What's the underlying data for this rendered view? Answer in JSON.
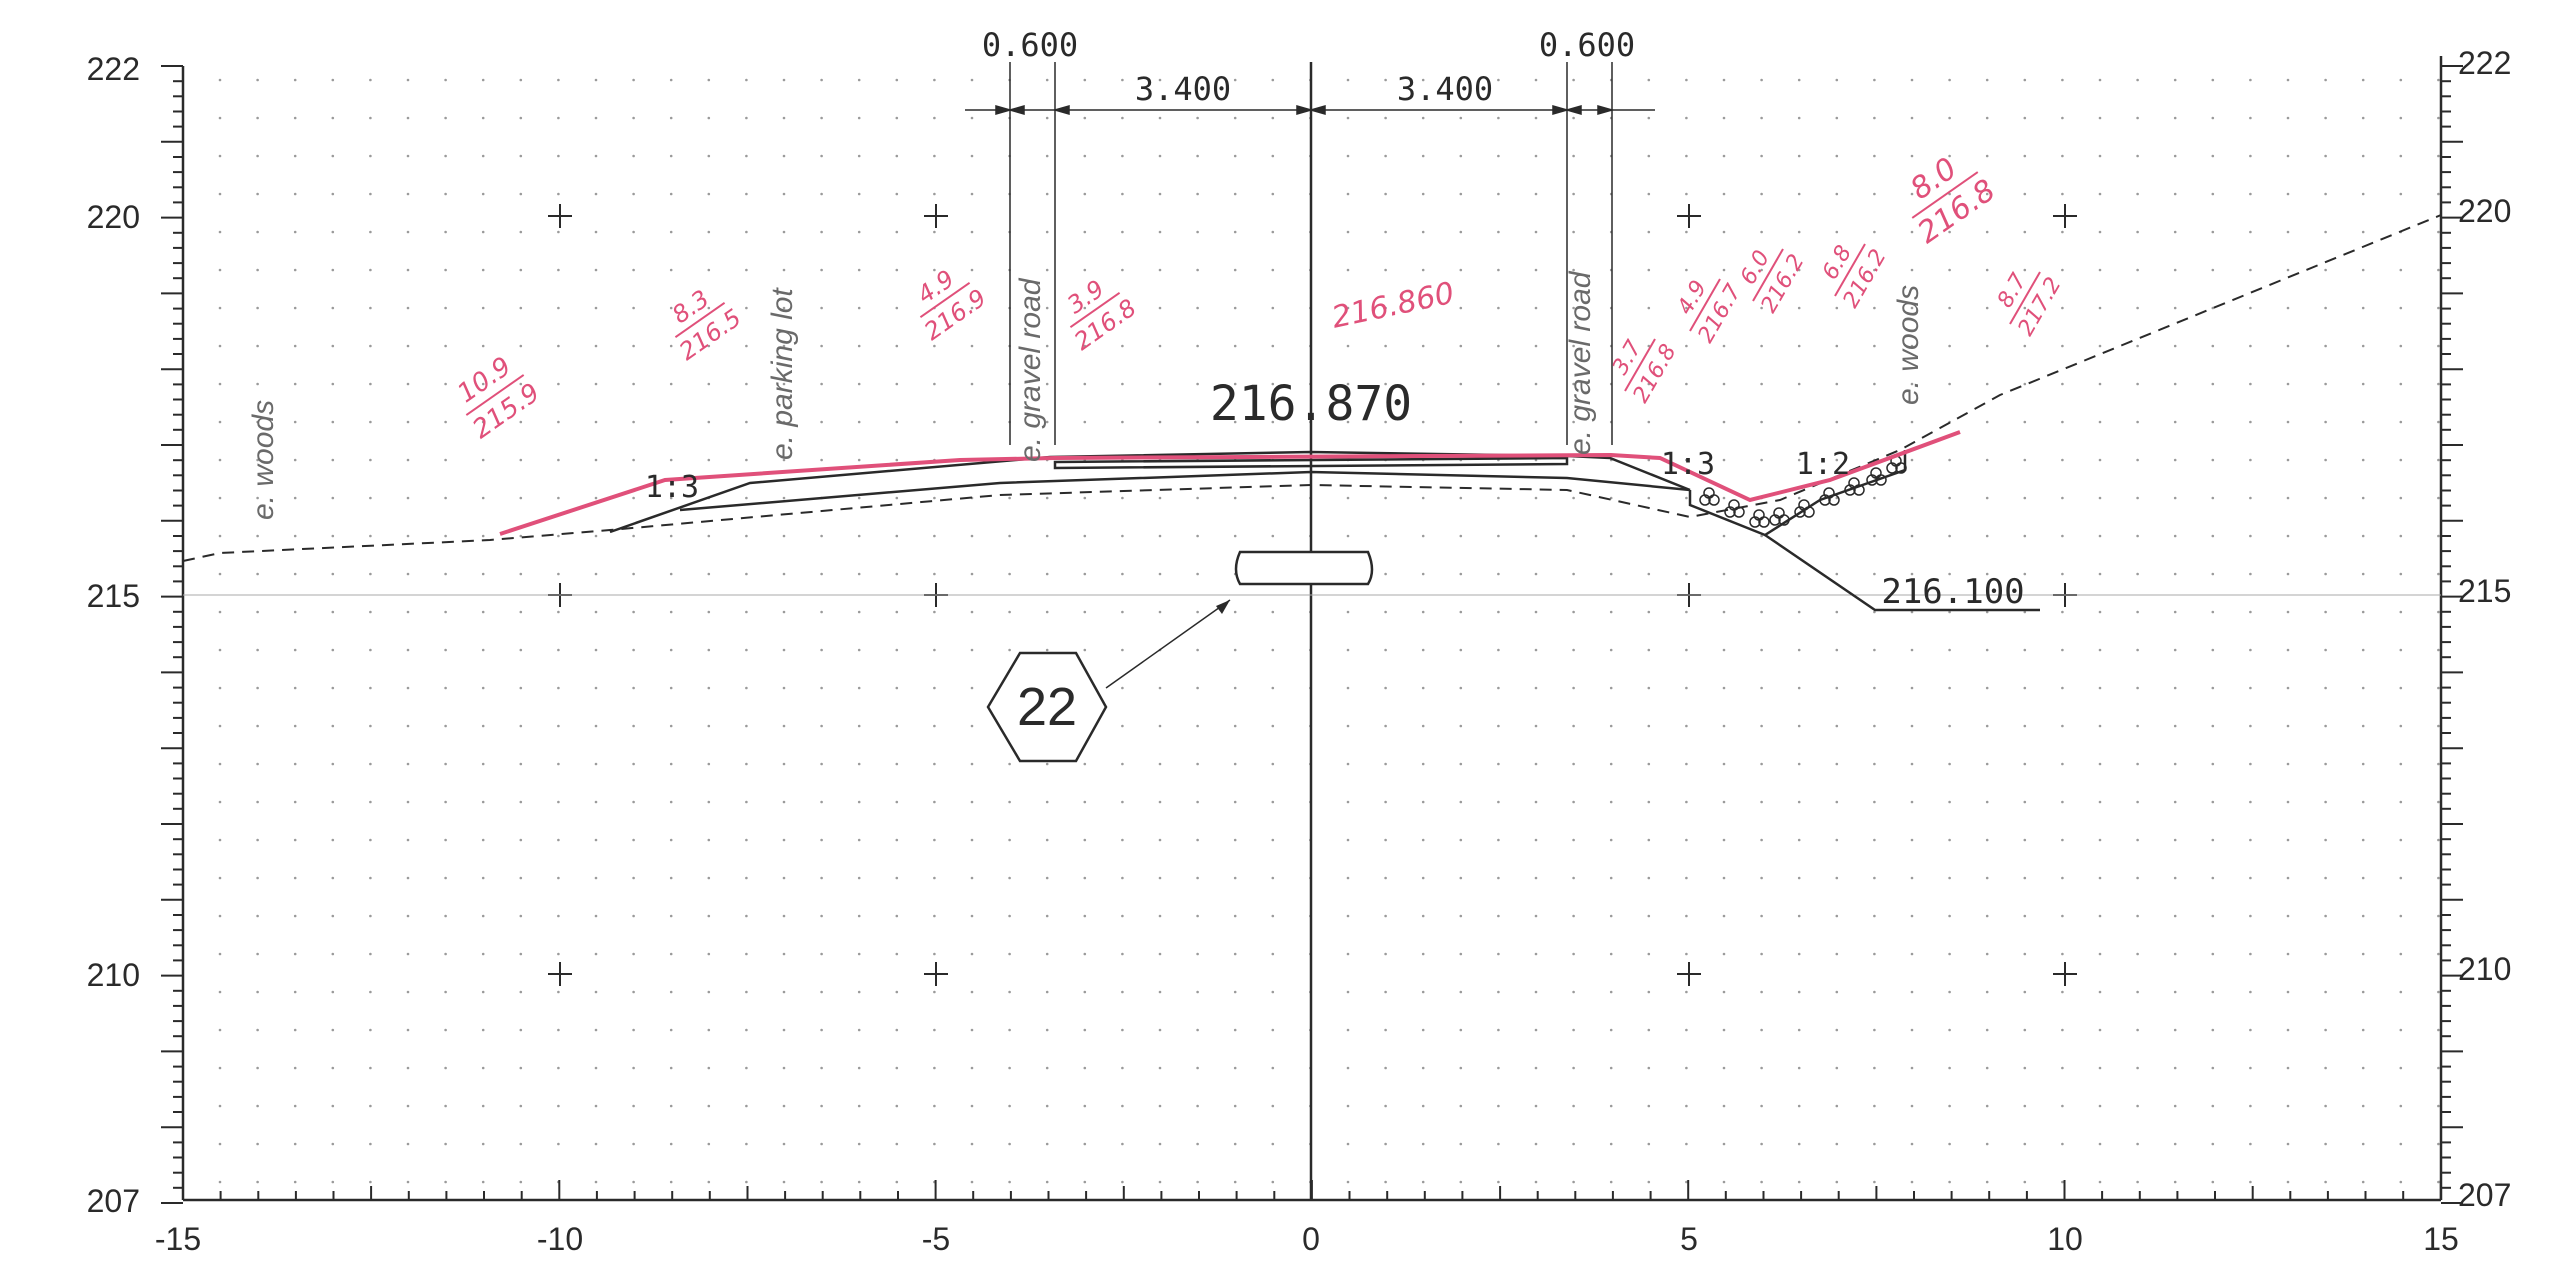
{
  "axes": {
    "x_ticks": [
      "-15",
      "-10",
      "-5",
      "0",
      "5",
      "10",
      "15"
    ],
    "y_ticks_left": [
      "222",
      "220",
      "215",
      "210",
      "207"
    ],
    "y_ticks_right": [
      "222",
      "220",
      "215",
      "210",
      "207"
    ]
  },
  "dims": {
    "left_outer": "0.600",
    "right_outer": "0.600",
    "left_inner": "3.400",
    "right_inner": "3.400",
    "centre_elev": "216.870",
    "ditch_elev": "216.100",
    "slope_left": "1:3",
    "slope_ditch_in": "1:3",
    "slope_ditch_out": "1:2"
  },
  "callout": {
    "number": "22"
  },
  "notes": {
    "woods_left": "e. woods",
    "parking": "e. parking lot",
    "gravel_left": "e. gravel road",
    "gravel_right": "e. gravel road",
    "woods_right": "e. woods"
  },
  "handwritten": [
    {
      "top": "10.9",
      "bottom": "215.9"
    },
    {
      "top": "8.3",
      "bottom": "216.5"
    },
    {
      "top": "4.9",
      "bottom": "216.9"
    },
    {
      "top": "3.9",
      "bottom": "216.8"
    },
    {
      "top": "216.860",
      "bottom": ""
    },
    {
      "top": "3.7",
      "bottom": "216.8"
    },
    {
      "top": "4.9",
      "bottom": "216.7"
    },
    {
      "top": "6.0",
      "bottom": "216.2"
    },
    {
      "top": "6.8",
      "bottom": "216.2"
    },
    {
      "top": "8.0",
      "bottom": "216.8"
    },
    {
      "top": "8.7",
      "bottom": "217.2"
    }
  ],
  "colors": {
    "ink": "#2a2a2a",
    "markup": "#e0507a",
    "grid": "#9a9a9a"
  }
}
